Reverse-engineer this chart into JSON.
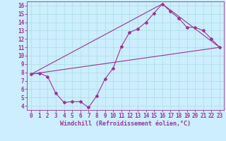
{
  "xlabel": "Windchill (Refroidissement éolien,°C)",
  "bg_color": "#cceeff",
  "grid_color": "#aadddd",
  "line_color": "#993399",
  "spine_color": "#993399",
  "xlim": [
    -0.5,
    23.5
  ],
  "ylim": [
    3.5,
    16.5
  ],
  "xticks": [
    0,
    1,
    2,
    3,
    4,
    5,
    6,
    7,
    8,
    9,
    10,
    11,
    12,
    13,
    14,
    15,
    16,
    17,
    18,
    19,
    20,
    21,
    22,
    23
  ],
  "yticks": [
    4,
    5,
    6,
    7,
    8,
    9,
    10,
    11,
    12,
    13,
    14,
    15,
    16
  ],
  "line1_x": [
    0,
    1,
    2,
    3,
    4,
    5,
    6,
    7,
    8,
    9,
    10,
    11,
    12,
    13,
    14,
    15,
    16,
    17,
    18,
    19,
    20,
    21,
    22,
    23
  ],
  "line1_y": [
    7.8,
    7.9,
    7.5,
    5.5,
    4.4,
    4.5,
    4.5,
    3.8,
    5.2,
    7.2,
    8.5,
    11.1,
    12.8,
    13.2,
    14.0,
    15.1,
    16.2,
    15.3,
    14.5,
    13.4,
    13.4,
    13.0,
    12.0,
    11.0
  ],
  "line2_x": [
    0,
    23
  ],
  "line2_y": [
    7.8,
    11.0
  ],
  "line3_x": [
    0,
    16,
    23
  ],
  "line3_y": [
    7.8,
    16.2,
    11.0
  ],
  "tick_fontsize": 5.5,
  "label_fontsize": 6.0,
  "lw": 0.8,
  "ms": 2.0
}
